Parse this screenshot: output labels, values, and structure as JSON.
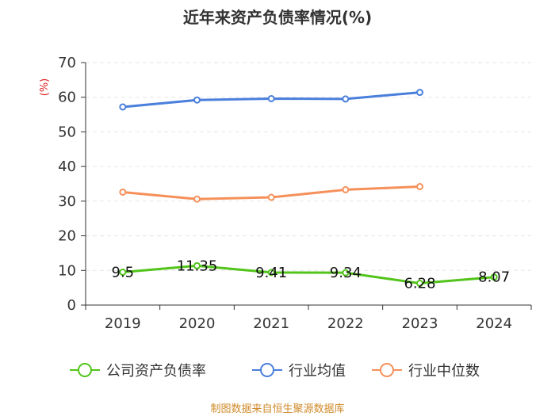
{
  "chart_data": {
    "type": "line",
    "title": "近年来资产负债率情况(%)",
    "ylabel": "(%)",
    "xlabel": "",
    "categories": [
      "2019",
      "2020",
      "2021",
      "2022",
      "2023",
      "2024"
    ],
    "ylim": [
      0,
      70
    ],
    "yticks": [
      0,
      10,
      20,
      30,
      40,
      50,
      60,
      70
    ],
    "series": [
      {
        "name": "公司资产负债率",
        "color": "#52c41a",
        "values": [
          9.5,
          11.35,
          9.41,
          9.34,
          6.28,
          8.07
        ],
        "labels": [
          "9.5",
          "11.35",
          "9.41",
          "9.34",
          "6.28",
          "8.07"
        ]
      },
      {
        "name": "行业均值",
        "color": "#4a7fdc",
        "values": [
          57.2,
          59.2,
          59.6,
          59.5,
          61.4,
          null
        ]
      },
      {
        "name": "行业中位数",
        "color": "#f5905a",
        "values": [
          32.6,
          30.6,
          31.1,
          33.3,
          34.2,
          null
        ]
      }
    ],
    "ylabel_color": "#e02020",
    "source": "制图数据来自恒生聚源数据库",
    "source_color": "#d08a2a"
  }
}
